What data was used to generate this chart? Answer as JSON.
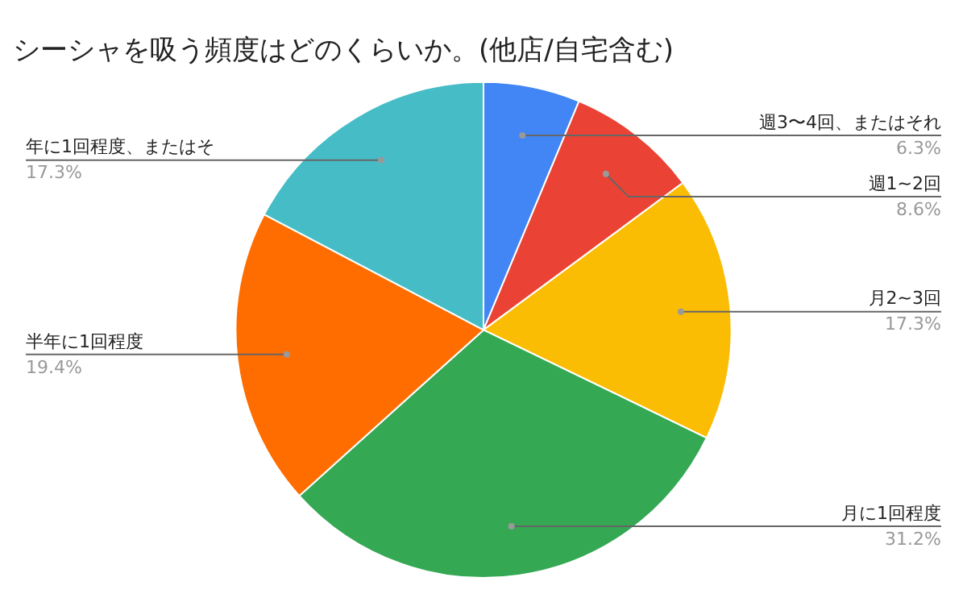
{
  "chart_data": {
    "type": "pie",
    "title": "シーシャを吸う頻度はどのくらいか。(他店/自宅含む)",
    "categories": [
      "週3〜4回、またはそれ",
      "週1~2回",
      "月2~3回",
      "月に1回程度",
      "半年に1回程度",
      "年に1回程度、またはそ"
    ],
    "values": [
      6.3,
      8.6,
      17.3,
      31.2,
      19.4,
      17.3
    ],
    "colors": [
      "#4285f4",
      "#ea4335",
      "#fbbc04",
      "#34a853",
      "#ff6d01",
      "#46bdc6"
    ],
    "value_labels": [
      "6.3%",
      "8.6%",
      "17.3%",
      "31.2%",
      "19.4%",
      "17.3%"
    ]
  }
}
